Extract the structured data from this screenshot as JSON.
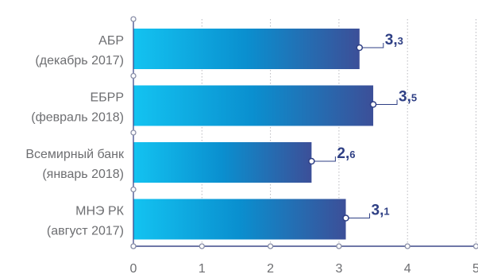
{
  "chart_data": {
    "type": "bar",
    "orientation": "horizontal",
    "categories": [
      [
        "АБР",
        "(декабрь 2017)"
      ],
      [
        "ЕБРР",
        "(февраль 2018)"
      ],
      [
        "Всемирный банк",
        "(январь 2018)"
      ],
      [
        "МНЭ РК",
        "(август 2017)"
      ]
    ],
    "values": [
      3.3,
      3.5,
      2.6,
      3.1
    ],
    "value_labels": [
      {
        "int": "3,",
        "dec": "3"
      },
      {
        "int": "3,",
        "dec": "5"
      },
      {
        "int": "2,",
        "dec": "6"
      },
      {
        "int": "3,",
        "dec": "1"
      }
    ],
    "xlim": [
      0,
      5
    ],
    "xticks": [
      "0",
      "1",
      "2",
      "3",
      "4",
      "5"
    ],
    "grid": "vertical dotted",
    "colors": {
      "bar_left": "#13c3f1",
      "bar_mid": "#0a8fcf",
      "bar_right": "#3c4f98",
      "axis": "#3f4a8a",
      "grid": "#b9b9bf",
      "text": "#6d6e71",
      "label": "#2e3f84"
    }
  }
}
